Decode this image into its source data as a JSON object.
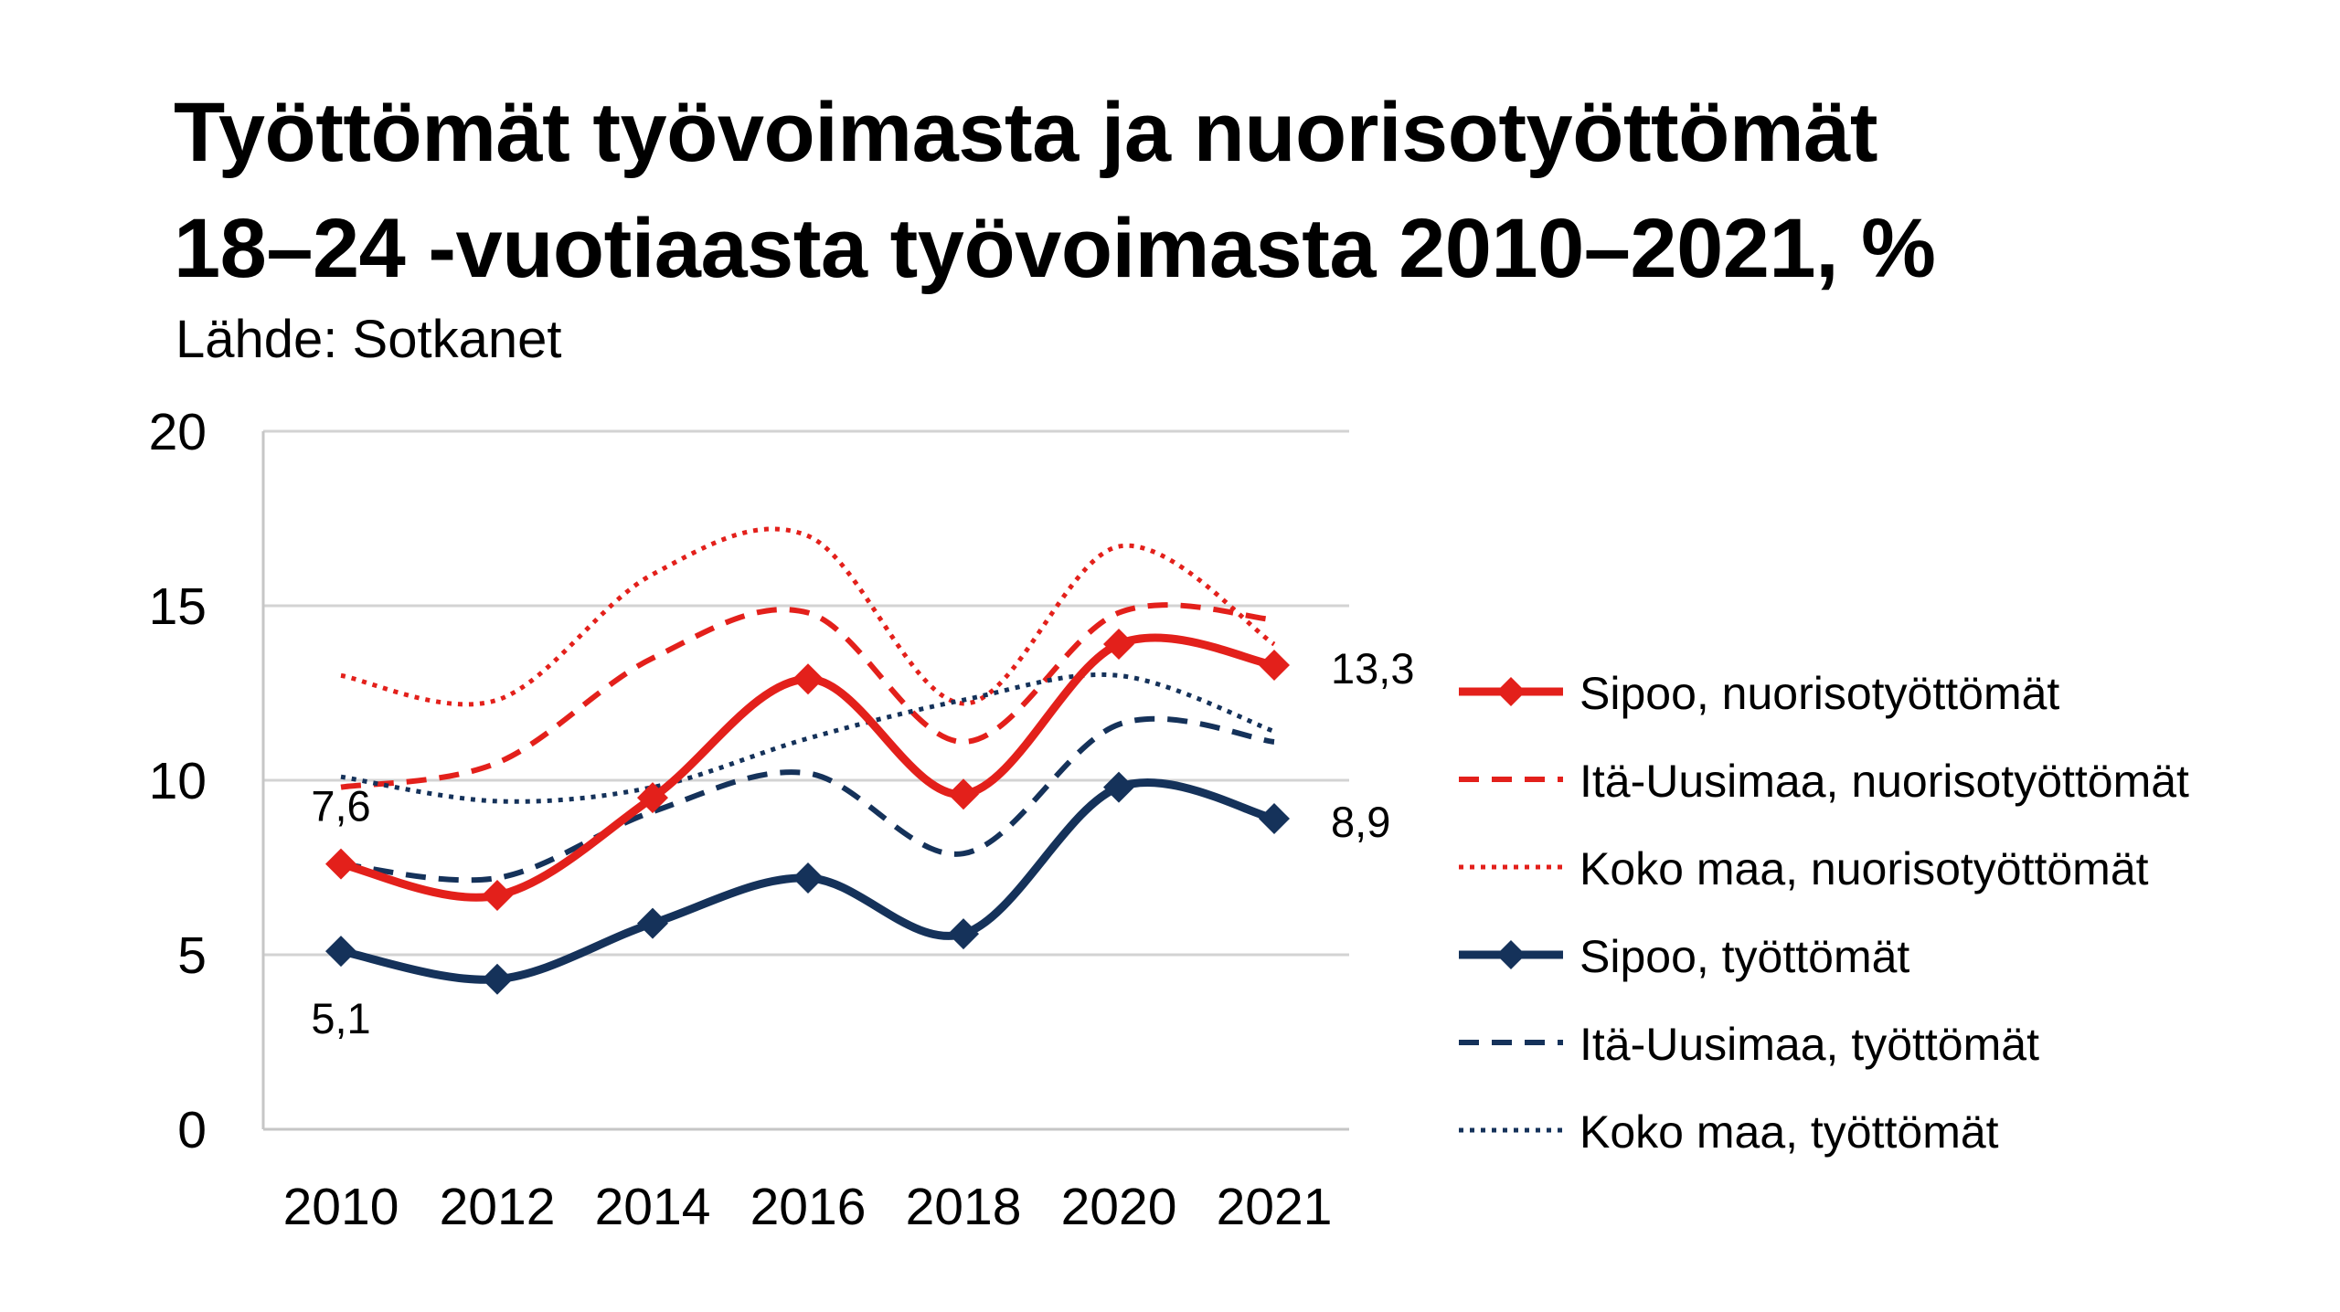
{
  "title_lines": [
    "Työttömät työvoimasta ja nuorisotyöttömät",
    "18–24 -vuotiaasta työvoimasta 2010–2021, %"
  ],
  "source": "Lähde: Sotkanet",
  "chart_data": {
    "type": "line",
    "categories": [
      "2010",
      "2012",
      "2014",
      "2016",
      "2018",
      "2020",
      "2021"
    ],
    "ylim": [
      0,
      20
    ],
    "yticks": [
      "0",
      "5",
      "10",
      "15",
      "20"
    ],
    "grid": true,
    "legend_position": "right",
    "series": [
      {
        "name": "Sipoo, nuorisotyöttömät",
        "values": [
          7.6,
          6.7,
          9.5,
          12.9,
          9.6,
          13.9,
          13.3
        ],
        "color": "#e3201b",
        "style": "solid",
        "markers": true
      },
      {
        "name": "Itä-Uusimaa, nuorisotyöttömät",
        "values": [
          9.8,
          10.5,
          13.5,
          14.8,
          11.1,
          14.8,
          14.6
        ],
        "color": "#e3201b",
        "style": "dashed",
        "markers": false
      },
      {
        "name": "Koko maa, nuorisotyöttömät",
        "values": [
          13.0,
          12.3,
          15.9,
          17.0,
          12.2,
          16.7,
          13.9
        ],
        "color": "#e3201b",
        "style": "dotted",
        "markers": false
      },
      {
        "name": "Sipoo, työttömät",
        "values": [
          5.1,
          4.3,
          5.9,
          7.2,
          5.6,
          9.8,
          8.9
        ],
        "color": "#15325a",
        "style": "solid",
        "markers": true
      },
      {
        "name": "Itä-Uusimaa, työttömät",
        "values": [
          7.6,
          7.2,
          9.1,
          10.2,
          7.9,
          11.6,
          11.1
        ],
        "color": "#15325a",
        "style": "dashed",
        "markers": false
      },
      {
        "name": "Koko maa, työttömät",
        "values": [
          10.1,
          9.4,
          9.8,
          11.2,
          12.3,
          13.0,
          11.4
        ],
        "color": "#15325a",
        "style": "dotted",
        "markers": false
      }
    ],
    "annotations": [
      {
        "text": "7,6",
        "category": "2010",
        "value": 7.6,
        "anchor": "above"
      },
      {
        "text": "5,1",
        "category": "2010",
        "value": 5.1,
        "anchor": "below"
      },
      {
        "text": "13,3",
        "category": "2021",
        "value": 13.3,
        "anchor": "right"
      },
      {
        "text": "8,9",
        "category": "2021",
        "value": 8.9,
        "anchor": "right"
      }
    ]
  }
}
